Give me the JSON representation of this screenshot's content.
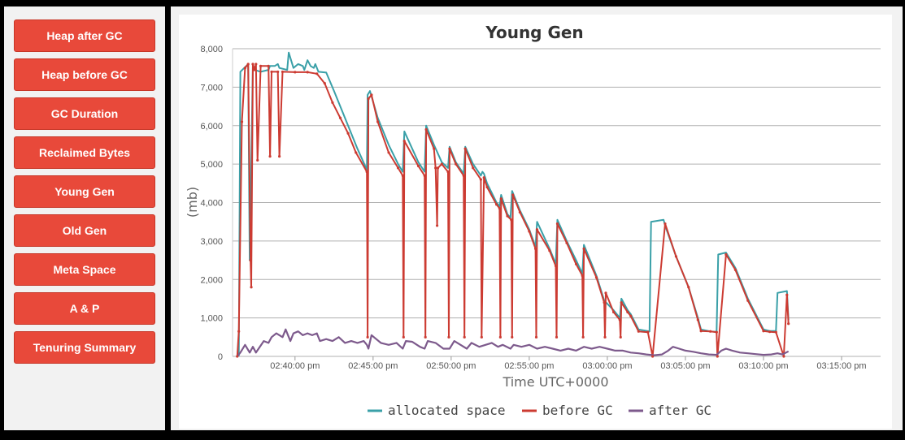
{
  "sidebar": {
    "buttons": [
      {
        "label": "Heap after GC"
      },
      {
        "label": "Heap before GC"
      },
      {
        "label": "GC Duration"
      },
      {
        "label": "Reclaimed Bytes"
      },
      {
        "label": "Young Gen"
      },
      {
        "label": "Old Gen"
      },
      {
        "label": "Meta Space"
      },
      {
        "label": "A & P"
      },
      {
        "label": "Tenuring Summary"
      }
    ]
  },
  "colors": {
    "button": "#e8493a",
    "allocated": "#3aa0a8",
    "before": "#cc3b32",
    "after": "#7d5a8c",
    "grid": "#b0b0b0"
  },
  "chart_data": {
    "type": "line",
    "title": "Young Gen",
    "xlabel": "Time UTC+0000",
    "ylabel": "(mb)",
    "x_unit": "minutes past 02:36",
    "xlim": [
      0,
      41.5
    ],
    "ylim": [
      0,
      8000
    ],
    "yticks": [
      "0",
      "1,000",
      "2,000",
      "3,000",
      "4,000",
      "5,000",
      "6,000",
      "7,000",
      "8,000"
    ],
    "xticks": [
      {
        "label": "02:40:00 pm",
        "t": 4
      },
      {
        "label": "02:45:00 pm",
        "t": 9
      },
      {
        "label": "02:50:00 pm",
        "t": 14
      },
      {
        "label": "02:55:00 pm",
        "t": 19
      },
      {
        "label": "03:00:00 pm",
        "t": 24
      },
      {
        "label": "03:05:00 pm",
        "t": 29
      },
      {
        "label": "03:10:00 pm",
        "t": 34
      },
      {
        "label": "03:15:00 pm",
        "t": 39
      }
    ],
    "grid": true,
    "legend_position": "bottom",
    "series": [
      {
        "name": "allocated space",
        "points": [
          [
            0.4,
            0
          ],
          [
            0.5,
            7400
          ],
          [
            1.0,
            7600
          ],
          [
            1.1,
            2500
          ],
          [
            1.3,
            7600
          ],
          [
            1.4,
            7450
          ],
          [
            1.8,
            7400
          ],
          [
            2.3,
            7450
          ],
          [
            2.4,
            7550
          ],
          [
            2.7,
            7550
          ],
          [
            2.9,
            7600
          ],
          [
            3.0,
            7500
          ],
          [
            3.5,
            7450
          ],
          [
            3.6,
            7900
          ],
          [
            3.9,
            7500
          ],
          [
            4.2,
            7600
          ],
          [
            4.5,
            7550
          ],
          [
            4.6,
            7450
          ],
          [
            4.8,
            7700
          ],
          [
            5.0,
            7550
          ],
          [
            5.2,
            7500
          ],
          [
            5.3,
            7600
          ],
          [
            5.5,
            7400
          ],
          [
            6.0,
            7380
          ],
          [
            6.5,
            6900
          ],
          [
            7.0,
            6400
          ],
          [
            7.5,
            5900
          ],
          [
            8.0,
            5400
          ],
          [
            8.6,
            4850
          ],
          [
            8.65,
            6800
          ],
          [
            8.8,
            6900
          ],
          [
            9.3,
            6200
          ],
          [
            10.0,
            5500
          ],
          [
            10.6,
            5000
          ],
          [
            10.9,
            4800
          ],
          [
            11.0,
            5850
          ],
          [
            11.9,
            5050
          ],
          [
            12.3,
            4800
          ],
          [
            12.4,
            6000
          ],
          [
            12.9,
            5500
          ],
          [
            13.4,
            5050
          ],
          [
            13.8,
            4900
          ],
          [
            13.9,
            5450
          ],
          [
            14.3,
            5050
          ],
          [
            14.8,
            4750
          ],
          [
            14.9,
            5450
          ],
          [
            15.4,
            5000
          ],
          [
            15.9,
            4700
          ],
          [
            16.0,
            4800
          ],
          [
            16.1,
            4750
          ],
          [
            16.3,
            4500
          ],
          [
            16.9,
            4000
          ],
          [
            17.1,
            3900
          ],
          [
            17.2,
            4200
          ],
          [
            17.6,
            3700
          ],
          [
            17.8,
            3600
          ],
          [
            17.9,
            4300
          ],
          [
            18.4,
            3800
          ],
          [
            19.0,
            3300
          ],
          [
            19.4,
            2850
          ],
          [
            19.5,
            3500
          ],
          [
            20.3,
            2800
          ],
          [
            20.7,
            2400
          ],
          [
            20.8,
            3550
          ],
          [
            21.4,
            3000
          ],
          [
            22.0,
            2500
          ],
          [
            22.4,
            2150
          ],
          [
            22.5,
            2900
          ],
          [
            23.3,
            2100
          ],
          [
            23.8,
            1450
          ],
          [
            24.4,
            1200
          ],
          [
            24.8,
            1000
          ],
          [
            24.9,
            1500
          ],
          [
            25.3,
            1200
          ],
          [
            25.5,
            1100
          ],
          [
            26.0,
            700
          ],
          [
            26.3,
            680
          ],
          [
            26.7,
            650
          ],
          [
            26.8,
            3500
          ],
          [
            27.6,
            3550
          ],
          [
            27.7,
            3400
          ],
          [
            28.4,
            2600
          ],
          [
            29.2,
            1800
          ],
          [
            29.8,
            1000
          ],
          [
            30.0,
            700
          ],
          [
            30.6,
            650
          ],
          [
            31.0,
            640
          ],
          [
            31.1,
            2650
          ],
          [
            31.6,
            2700
          ],
          [
            32.2,
            2300
          ],
          [
            33.0,
            1500
          ],
          [
            34.0,
            700
          ],
          [
            34.4,
            660
          ],
          [
            34.8,
            660
          ],
          [
            34.9,
            1650
          ],
          [
            35.5,
            1700
          ],
          [
            35.6,
            950
          ]
        ]
      },
      {
        "name": "before GC",
        "points": [
          [
            0.3,
            0
          ],
          [
            0.4,
            650
          ],
          [
            0.6,
            6100
          ],
          [
            0.8,
            7500
          ],
          [
            1.0,
            7600
          ],
          [
            1.15,
            2500
          ],
          [
            1.2,
            1800
          ],
          [
            1.3,
            7600
          ],
          [
            1.4,
            7450
          ],
          [
            1.5,
            7600
          ],
          [
            1.6,
            5100
          ],
          [
            1.8,
            7550
          ],
          [
            2.3,
            7550
          ],
          [
            2.4,
            5200
          ],
          [
            2.5,
            7400
          ],
          [
            2.9,
            7400
          ],
          [
            3.0,
            5200
          ],
          [
            3.2,
            7400
          ],
          [
            4.0,
            7390
          ],
          [
            4.8,
            7390
          ],
          [
            5.4,
            7350
          ],
          [
            5.9,
            7100
          ],
          [
            6.4,
            6600
          ],
          [
            6.9,
            6200
          ],
          [
            7.4,
            5800
          ],
          [
            7.9,
            5300
          ],
          [
            8.6,
            4800
          ],
          [
            8.65,
            500
          ],
          [
            8.7,
            6700
          ],
          [
            8.9,
            6800
          ],
          [
            9.3,
            6100
          ],
          [
            10.0,
            5300
          ],
          [
            10.6,
            4900
          ],
          [
            10.9,
            4700
          ],
          [
            10.95,
            500
          ],
          [
            11.0,
            5600
          ],
          [
            11.9,
            4950
          ],
          [
            12.3,
            4700
          ],
          [
            12.35,
            500
          ],
          [
            12.4,
            5900
          ],
          [
            12.9,
            5400
          ],
          [
            13.0,
            4900
          ],
          [
            13.1,
            3400
          ],
          [
            13.15,
            4900
          ],
          [
            13.4,
            5000
          ],
          [
            13.8,
            4800
          ],
          [
            13.85,
            500
          ],
          [
            13.9,
            5400
          ],
          [
            14.3,
            5000
          ],
          [
            14.8,
            4700
          ],
          [
            14.85,
            500
          ],
          [
            14.9,
            5400
          ],
          [
            15.4,
            4900
          ],
          [
            15.9,
            4600
          ],
          [
            15.95,
            500
          ],
          [
            16.1,
            4650
          ],
          [
            16.3,
            4400
          ],
          [
            16.9,
            3950
          ],
          [
            17.1,
            3850
          ],
          [
            17.15,
            500
          ],
          [
            17.2,
            4100
          ],
          [
            17.6,
            3650
          ],
          [
            17.85,
            3550
          ],
          [
            17.9,
            500
          ],
          [
            17.95,
            4200
          ],
          [
            18.4,
            3750
          ],
          [
            19.0,
            3250
          ],
          [
            19.4,
            2800
          ],
          [
            19.45,
            500
          ],
          [
            19.5,
            3300
          ],
          [
            20.3,
            2750
          ],
          [
            20.7,
            2350
          ],
          [
            20.75,
            500
          ],
          [
            20.8,
            3450
          ],
          [
            21.4,
            2950
          ],
          [
            22.0,
            2400
          ],
          [
            22.4,
            2100
          ],
          [
            22.45,
            500
          ],
          [
            22.5,
            2800
          ],
          [
            23.3,
            2050
          ],
          [
            23.8,
            1400
          ],
          [
            23.85,
            500
          ],
          [
            23.9,
            1650
          ],
          [
            24.4,
            1150
          ],
          [
            24.8,
            950
          ],
          [
            24.85,
            500
          ],
          [
            24.9,
            1400
          ],
          [
            25.3,
            1150
          ],
          [
            25.5,
            1050
          ],
          [
            26.0,
            650
          ],
          [
            26.6,
            630
          ],
          [
            26.9,
            0
          ],
          [
            27.7,
            3450
          ],
          [
            28.4,
            2600
          ],
          [
            29.2,
            1800
          ],
          [
            29.8,
            950
          ],
          [
            30.0,
            660
          ],
          [
            30.6,
            650
          ],
          [
            31.0,
            630
          ],
          [
            31.05,
            0
          ],
          [
            31.6,
            2650
          ],
          [
            32.2,
            2250
          ],
          [
            33.0,
            1450
          ],
          [
            34.0,
            660
          ],
          [
            34.4,
            640
          ],
          [
            34.8,
            630
          ],
          [
            35.3,
            0
          ],
          [
            35.5,
            1600
          ],
          [
            35.6,
            850
          ]
        ]
      },
      {
        "name": "after GC",
        "points": [
          [
            0.3,
            0
          ],
          [
            0.5,
            100
          ],
          [
            0.8,
            300
          ],
          [
            1.1,
            100
          ],
          [
            1.3,
            250
          ],
          [
            1.5,
            100
          ],
          [
            2.0,
            400
          ],
          [
            2.3,
            350
          ],
          [
            2.5,
            500
          ],
          [
            2.8,
            600
          ],
          [
            3.2,
            500
          ],
          [
            3.4,
            700
          ],
          [
            3.7,
            400
          ],
          [
            3.9,
            600
          ],
          [
            4.2,
            650
          ],
          [
            4.5,
            550
          ],
          [
            4.8,
            600
          ],
          [
            5.1,
            550
          ],
          [
            5.4,
            600
          ],
          [
            5.6,
            400
          ],
          [
            6.0,
            450
          ],
          [
            6.4,
            400
          ],
          [
            6.8,
            500
          ],
          [
            7.2,
            350
          ],
          [
            7.6,
            400
          ],
          [
            8.0,
            350
          ],
          [
            8.4,
            400
          ],
          [
            8.6,
            300
          ],
          [
            8.7,
            200
          ],
          [
            8.9,
            550
          ],
          [
            9.2,
            450
          ],
          [
            9.5,
            350
          ],
          [
            10.0,
            300
          ],
          [
            10.5,
            350
          ],
          [
            10.9,
            200
          ],
          [
            11.1,
            400
          ],
          [
            11.5,
            380
          ],
          [
            12.0,
            250
          ],
          [
            12.3,
            200
          ],
          [
            12.5,
            400
          ],
          [
            13.0,
            350
          ],
          [
            13.5,
            200
          ],
          [
            13.9,
            200
          ],
          [
            14.2,
            400
          ],
          [
            14.6,
            300
          ],
          [
            15.0,
            200
          ],
          [
            15.3,
            350
          ],
          [
            15.8,
            250
          ],
          [
            16.2,
            300
          ],
          [
            16.6,
            350
          ],
          [
            17.0,
            250
          ],
          [
            17.3,
            300
          ],
          [
            17.8,
            200
          ],
          [
            18.0,
            300
          ],
          [
            18.5,
            250
          ],
          [
            19.0,
            300
          ],
          [
            19.5,
            200
          ],
          [
            20.0,
            250
          ],
          [
            20.5,
            200
          ],
          [
            21.0,
            150
          ],
          [
            21.5,
            200
          ],
          [
            22.0,
            150
          ],
          [
            22.5,
            250
          ],
          [
            23.0,
            200
          ],
          [
            23.5,
            250
          ],
          [
            24.0,
            200
          ],
          [
            24.5,
            150
          ],
          [
            25.0,
            150
          ],
          [
            25.5,
            100
          ],
          [
            26.0,
            80
          ],
          [
            26.5,
            50
          ],
          [
            27.0,
            30
          ],
          [
            27.5,
            50
          ],
          [
            27.9,
            150
          ],
          [
            28.2,
            250
          ],
          [
            28.6,
            200
          ],
          [
            29.0,
            150
          ],
          [
            29.5,
            120
          ],
          [
            30.0,
            80
          ],
          [
            30.5,
            50
          ],
          [
            31.0,
            40
          ],
          [
            31.3,
            150
          ],
          [
            31.6,
            200
          ],
          [
            32.0,
            150
          ],
          [
            32.5,
            100
          ],
          [
            33.0,
            80
          ],
          [
            33.5,
            60
          ],
          [
            34.0,
            40
          ],
          [
            34.5,
            50
          ],
          [
            34.9,
            80
          ],
          [
            35.2,
            50
          ],
          [
            35.6,
            130
          ]
        ]
      }
    ]
  }
}
